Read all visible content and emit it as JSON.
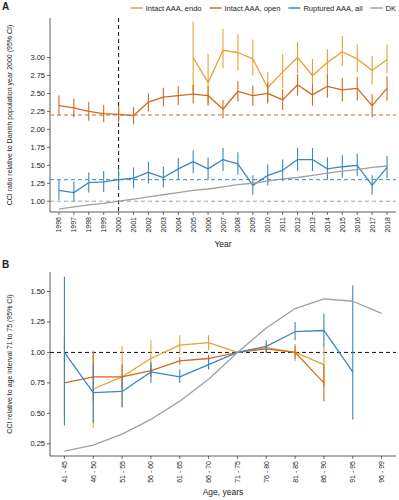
{
  "chart_data": [
    {
      "panel": "A",
      "type": "line",
      "x_label": "Year",
      "y_label": "CCI ratio relative to Danish population year 2000 (95% CI)",
      "x": [
        1996,
        1997,
        1998,
        1999,
        2000,
        2001,
        2002,
        2003,
        2004,
        2005,
        2006,
        2007,
        2008,
        2009,
        2010,
        2011,
        2012,
        2013,
        2014,
        2015,
        2016,
        2017,
        2018
      ],
      "xlim": [
        1995.4,
        2018.6
      ],
      "xticks": [
        1996,
        1997,
        1998,
        1999,
        2000,
        2001,
        2002,
        2003,
        2004,
        2005,
        2006,
        2007,
        2008,
        2009,
        2010,
        2011,
        2012,
        2013,
        2014,
        2015,
        2016,
        2017,
        2018
      ],
      "ylim": [
        0.85,
        3.55
      ],
      "yticks": [
        {
          "value": 1,
          "label": "1.00"
        },
        {
          "value": 1.25,
          "label": "1.25"
        },
        {
          "value": 1.5,
          "label": "1.50"
        },
        {
          "value": 1.75,
          "label": "1.75"
        },
        {
          "value": 2,
          "label": "2.00"
        },
        {
          "value": 2.25,
          "label": "2.25"
        },
        {
          "value": 2.5,
          "label": "2.50"
        },
        {
          "value": 2.75,
          "label": "2.75"
        },
        {
          "value": 3,
          "label": "3.00"
        }
      ],
      "vline": 2000,
      "grid": false,
      "legend": "top-right",
      "series": [
        {
          "name": "Intact AAA, endo",
          "color": "#e6a233",
          "values": [
            null,
            null,
            null,
            null,
            null,
            null,
            null,
            null,
            null,
            3.0,
            2.65,
            3.1,
            3.07,
            2.98,
            2.58,
            2.8,
            3.0,
            2.75,
            2.93,
            3.08,
            2.98,
            2.82,
            2.97
          ],
          "ci_low": [
            null,
            null,
            null,
            null,
            null,
            null,
            null,
            null,
            null,
            2.5,
            2.35,
            2.85,
            2.82,
            2.75,
            2.38,
            2.58,
            2.78,
            2.55,
            2.72,
            2.88,
            2.8,
            2.62,
            2.78
          ],
          "ci_high": [
            null,
            null,
            null,
            null,
            null,
            null,
            null,
            null,
            null,
            3.5,
            3.05,
            3.4,
            3.32,
            3.25,
            2.8,
            3.05,
            3.22,
            2.98,
            3.12,
            3.3,
            3.18,
            3.02,
            3.18
          ]
        },
        {
          "name": "Intact AAA, open",
          "color": "#d2691e",
          "values": [
            2.33,
            2.3,
            2.25,
            2.22,
            2.21,
            2.19,
            2.38,
            2.45,
            2.47,
            2.49,
            2.47,
            2.28,
            2.53,
            2.47,
            2.5,
            2.41,
            2.62,
            2.48,
            2.6,
            2.55,
            2.57,
            2.33,
            2.57
          ],
          "ci_low": [
            2.2,
            2.17,
            2.12,
            2.1,
            2.1,
            2.07,
            2.25,
            2.32,
            2.34,
            2.36,
            2.33,
            2.15,
            2.39,
            2.33,
            2.36,
            2.27,
            2.47,
            2.33,
            2.44,
            2.39,
            2.4,
            2.17,
            2.4
          ],
          "ci_high": [
            2.47,
            2.43,
            2.38,
            2.34,
            2.33,
            2.31,
            2.5,
            2.58,
            2.6,
            2.62,
            2.6,
            2.41,
            2.67,
            2.61,
            2.65,
            2.56,
            2.77,
            2.63,
            2.76,
            2.71,
            2.73,
            2.49,
            2.74
          ],
          "reference": 2.2
        },
        {
          "name": "Ruptured AAA, all",
          "color": "#3a88c0",
          "values": [
            1.15,
            1.12,
            1.26,
            1.27,
            1.3,
            1.32,
            1.4,
            1.33,
            1.45,
            1.55,
            1.45,
            1.58,
            1.52,
            1.22,
            1.36,
            1.43,
            1.58,
            1.58,
            1.45,
            1.48,
            1.5,
            1.22,
            1.47
          ],
          "ci_low": [
            1.02,
            0.99,
            1.12,
            1.13,
            1.16,
            1.18,
            1.25,
            1.19,
            1.3,
            1.39,
            1.3,
            1.42,
            1.37,
            1.09,
            1.22,
            1.28,
            1.42,
            1.42,
            1.3,
            1.33,
            1.35,
            1.09,
            1.32
          ],
          "ci_high": [
            1.3,
            1.27,
            1.4,
            1.42,
            1.45,
            1.47,
            1.55,
            1.48,
            1.6,
            1.71,
            1.61,
            1.74,
            1.68,
            1.36,
            1.51,
            1.58,
            1.74,
            1.74,
            1.61,
            1.64,
            1.66,
            1.36,
            1.63
          ],
          "reference": 1.3
        },
        {
          "name": "DK",
          "color": "#a0a0a0",
          "values": [
            0.89,
            0.92,
            0.95,
            0.97,
            1.0,
            1.03,
            1.06,
            1.09,
            1.12,
            1.15,
            1.17,
            1.2,
            1.23,
            1.25,
            1.28,
            1.31,
            1.33,
            1.36,
            1.39,
            1.42,
            1.44,
            1.47,
            1.49
          ],
          "reference": 1.0
        }
      ]
    },
    {
      "panel": "B",
      "type": "line",
      "x_label": "Age, years",
      "y_label": "CCI relative to age interval 71 to 75 (95% CI)",
      "categories": [
        "41 - 45",
        "46 - 50",
        "51 - 55",
        "56 - 60",
        "61 - 65",
        "66 - 70",
        "71 - 75",
        "76 - 80",
        "81 - 85",
        "86 - 90",
        "91 - 95",
        "96 - 99"
      ],
      "ylim": [
        0.15,
        1.66
      ],
      "yticks": [
        {
          "value": 0.25,
          "label": "0.25"
        },
        {
          "value": 0.5,
          "label": "0.50"
        },
        {
          "value": 0.75,
          "label": "0.75"
        },
        {
          "value": 1,
          "label": "1.00"
        },
        {
          "value": 1.25,
          "label": "1.25"
        },
        {
          "value": 1.5,
          "label": "1.50"
        }
      ],
      "hline": 1,
      "grid": false,
      "series": [
        {
          "color": "#e6a233",
          "values": [
            null,
            0.7,
            0.8,
            0.95,
            1.06,
            1.08,
            1.0,
            1.04,
            1.0,
            0.9,
            null,
            null
          ],
          "ci_low": [
            null,
            0.38,
            0.55,
            0.82,
            0.98,
            1.02,
            1.0,
            1.0,
            0.93,
            0.72,
            null,
            null
          ],
          "ci_high": [
            null,
            1.02,
            1.05,
            1.1,
            1.14,
            1.14,
            1.0,
            1.08,
            1.07,
            1.06,
            null,
            null
          ]
        },
        {
          "color": "#d2691e",
          "values": [
            0.75,
            0.8,
            0.8,
            0.85,
            0.93,
            0.95,
            1.0,
            1.03,
            1.0,
            0.75,
            null,
            null
          ],
          "ci_low": [
            0.48,
            0.6,
            0.7,
            0.8,
            0.9,
            0.93,
            1.0,
            1.0,
            0.95,
            0.6,
            null,
            null
          ],
          "ci_high": [
            1.15,
            1.0,
            0.9,
            0.9,
            0.96,
            0.98,
            1.0,
            1.06,
            1.05,
            0.9,
            null,
            null
          ]
        },
        {
          "color": "#3a88c0",
          "values": [
            1.0,
            0.67,
            0.68,
            0.84,
            0.8,
            0.9,
            1.0,
            1.05,
            1.17,
            1.18,
            0.84,
            null
          ],
          "ci_low": [
            0.4,
            0.42,
            0.55,
            0.75,
            0.75,
            0.86,
            1.0,
            1.0,
            1.1,
            1.05,
            0.45,
            null
          ],
          "ci_high": [
            1.62,
            0.9,
            0.8,
            0.92,
            0.86,
            0.95,
            1.0,
            1.1,
            1.25,
            1.32,
            1.55,
            null
          ]
        },
        {
          "color": "#a0a0a0",
          "values": [
            0.19,
            0.24,
            0.33,
            0.45,
            0.6,
            0.78,
            1.0,
            1.2,
            1.36,
            1.44,
            1.42,
            1.32
          ]
        }
      ]
    }
  ]
}
